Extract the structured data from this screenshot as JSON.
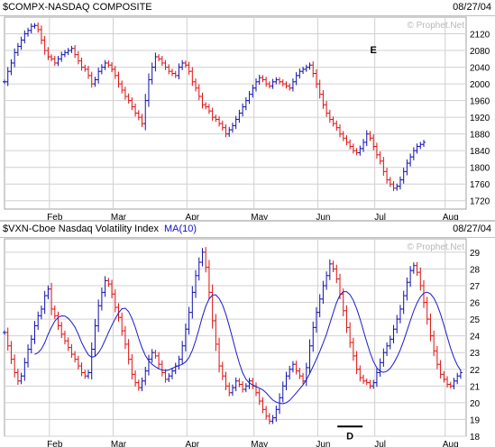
{
  "colors": {
    "up": "#1010b0",
    "down": "#dd1010",
    "ma": "#1a1acc",
    "grid": "#d0d0d0",
    "text": "#000000",
    "watermark": "#b8b8b8"
  },
  "top": {
    "title": "$COMPX-NASDAQ COMPOSITE",
    "date": "08/27/04",
    "watermark": "© Prophet.Net"
  },
  "bottom": {
    "title": "$VXN-Cboe Nasdaq Volatility Index",
    "ma_label": "MA(10)",
    "date": "08/27/04",
    "watermark": "© Prophet.Net"
  },
  "chart_data": [
    {
      "type": "bar",
      "title": "$COMPX-NASDAQ COMPOSITE",
      "ylim": [
        1700,
        2160
      ],
      "y_ticks": [
        1720,
        1760,
        1800,
        1840,
        1880,
        1920,
        1960,
        2000,
        2040,
        2080,
        2120
      ],
      "x_ticks": [
        {
          "label": "Feb",
          "index": 15
        },
        {
          "label": "Mar",
          "index": 34
        },
        {
          "label": "Apr",
          "index": 56
        },
        {
          "label": "May",
          "index": 76
        },
        {
          "label": "Jun",
          "index": 95
        },
        {
          "label": "Jul",
          "index": 112
        },
        {
          "label": "Aug",
          "index": 133
        }
      ],
      "annotations": [
        {
          "text": "E",
          "index": 110,
          "value": 2056
        }
      ],
      "close": [
        2005,
        2030,
        2050,
        2075,
        2090,
        2105,
        2120,
        2128,
        2138,
        2140,
        2130,
        2105,
        2080,
        2065,
        2060,
        2050,
        2060,
        2070,
        2075,
        2080,
        2085,
        2070,
        2055,
        2040,
        2035,
        2020,
        2000,
        2010,
        2030,
        2040,
        2050,
        2045,
        2035,
        2020,
        2000,
        1985,
        1970,
        1960,
        1945,
        1930,
        1920,
        1905,
        1960,
        2010,
        2040,
        2065,
        2060,
        2050,
        2040,
        2030,
        2025,
        2020,
        2040,
        2050,
        2045,
        2030,
        2005,
        1990,
        1970,
        1950,
        1945,
        1935,
        1920,
        1915,
        1905,
        1895,
        1880,
        1890,
        1900,
        1915,
        1930,
        1945,
        1960,
        1975,
        1990,
        2005,
        2015,
        2010,
        2000,
        1995,
        2005,
        2010,
        2005,
        2000,
        1995,
        1990,
        2005,
        2020,
        2030,
        2035,
        2040,
        2045,
        2025,
        2000,
        1975,
        1950,
        1930,
        1915,
        1905,
        1895,
        1880,
        1870,
        1860,
        1850,
        1840,
        1835,
        1845,
        1860,
        1880,
        1870,
        1850,
        1830,
        1815,
        1790,
        1770,
        1760,
        1750,
        1755,
        1770,
        1790,
        1810,
        1825,
        1840,
        1850,
        1855,
        1860
      ]
    },
    {
      "type": "bar",
      "title": "$VXN-Cboe Nasdaq Volatility Index",
      "ylim": [
        18,
        29.8
      ],
      "y_ticks": [
        18,
        19,
        20,
        21,
        22,
        23,
        24,
        25,
        26,
        27,
        28,
        29
      ],
      "x_ticks": [
        {
          "label": "Feb",
          "index": 15
        },
        {
          "label": "Mar",
          "index": 34
        },
        {
          "label": "Apr",
          "index": 56
        },
        {
          "label": "May",
          "index": 76
        },
        {
          "label": "Jun",
          "index": 95
        },
        {
          "label": "Jul",
          "index": 112
        },
        {
          "label": "Aug",
          "index": 133
        }
      ],
      "annotations": [
        {
          "text": "D",
          "index": 103,
          "value": 18.9
        }
      ],
      "series": [
        {
          "name": "MA(10)",
          "kind": "moving-average",
          "period": 10
        }
      ],
      "close": [
        24.2,
        23.4,
        22.6,
        21.8,
        21.3,
        21.6,
        22.4,
        23.2,
        23.8,
        24.6,
        25.2,
        25.6,
        26.4,
        26.8,
        25.6,
        25.2,
        24.6,
        24.1,
        23.7,
        23.3,
        22.9,
        22.6,
        22.2,
        21.8,
        21.6,
        21.8,
        23.2,
        24.6,
        25.8,
        26.6,
        27.3,
        27.1,
        26.5,
        25.7,
        25.1,
        24.3,
        23.5,
        22.6,
        21.7,
        21.2,
        20.9,
        21.3,
        21.9,
        22.6,
        23.0,
        22.8,
        22.3,
        21.8,
        21.4,
        21.6,
        21.9,
        22.2,
        22.6,
        23.4,
        24.4,
        25.4,
        26.6,
        27.6,
        28.4,
        29.0,
        28.1,
        26.6,
        24.9,
        23.5,
        22.2,
        21.6,
        21.0,
        20.6,
        20.9,
        21.3,
        21.1,
        20.8,
        21.0,
        21.3,
        21.0,
        20.6,
        20.1,
        19.6,
        19.2,
        18.9,
        19.1,
        19.6,
        20.3,
        21.0,
        21.6,
        22.0,
        22.3,
        21.9,
        21.6,
        21.3,
        22.1,
        23.4,
        24.5,
        25.4,
        26.2,
        27.0,
        27.6,
        28.3,
        28.0,
        27.4,
        26.5,
        25.5,
        24.5,
        23.6,
        22.8,
        22.0,
        21.5,
        21.3,
        21.2,
        21.0,
        21.2,
        21.8,
        22.4,
        23.0,
        23.4,
        23.8,
        24.4,
        25.0,
        25.6,
        26.4,
        27.2,
        27.9,
        28.2,
        27.8,
        27.0,
        26.0,
        25.0,
        24.0,
        23.1,
        22.3,
        21.7,
        21.4,
        21.1,
        21.0,
        21.3,
        21.6,
        21.8
      ]
    }
  ]
}
